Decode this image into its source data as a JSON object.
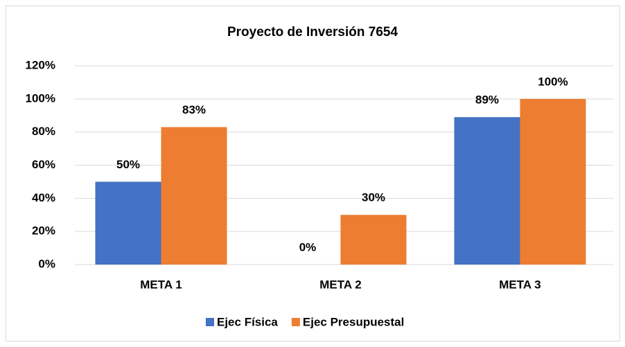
{
  "chart_data": {
    "type": "bar",
    "title": "Proyecto de Inversión 7654",
    "categories": [
      "META 1",
      "META 2",
      "META 3"
    ],
    "series": [
      {
        "name": "Ejec Física",
        "color": "#4472c4",
        "values": [
          50,
          0,
          89
        ],
        "value_labels": [
          "50%",
          "0%",
          "89%"
        ]
      },
      {
        "name": "Ejec Presupuestal",
        "color": "#ed7d31",
        "values": [
          83,
          30,
          100
        ],
        "value_labels": [
          "83%",
          "30%",
          "100%"
        ]
      }
    ],
    "ylim": [
      0,
      120
    ],
    "yticks": [
      {
        "value": 0,
        "label": "0%"
      },
      {
        "value": 20,
        "label": "20%"
      },
      {
        "value": 40,
        "label": "40%"
      },
      {
        "value": 60,
        "label": "60%"
      },
      {
        "value": 80,
        "label": "80%"
      },
      {
        "value": 100,
        "label": "100%"
      },
      {
        "value": 120,
        "label": "120%"
      }
    ],
    "grid": true,
    "legend": "bottom"
  }
}
